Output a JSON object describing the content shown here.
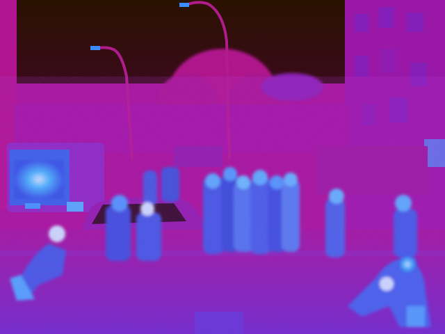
{
  "scene": {
    "kind": "thermal-infrared-street-scene",
    "palette": {
      "sky": "#2a1400",
      "cool_background": "#b0138f",
      "mid_background": "#7a1fb8",
      "warm_figure": "#3b62e6",
      "hot_figure": "#46c7ff",
      "hottest": "#e8f8ff"
    },
    "objects": [
      "street-lamp",
      "tree",
      "building-right",
      "vehicle-left",
      "parked-car",
      "crowd-group",
      "pedestrian",
      "road"
    ]
  }
}
